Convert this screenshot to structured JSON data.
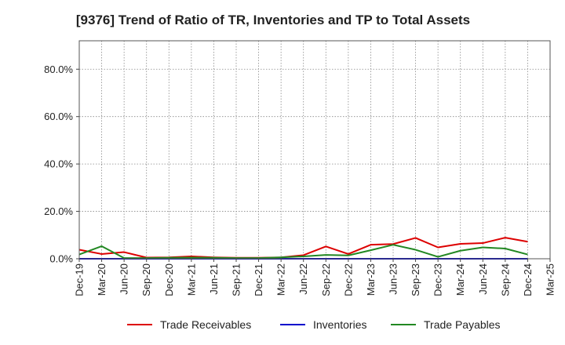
{
  "chart_data": {
    "type": "line",
    "title": "[9376]  Trend of Ratio of TR, Inventories and TP to Total Assets",
    "xlabel": "",
    "ylabel": "",
    "categories": [
      "Dec-19",
      "Mar-20",
      "Jun-20",
      "Sep-20",
      "Dec-20",
      "Mar-21",
      "Jun-21",
      "Sep-21",
      "Dec-21",
      "Mar-22",
      "Jun-22",
      "Sep-22",
      "Dec-22",
      "Mar-23",
      "Jun-23",
      "Sep-23",
      "Dec-23",
      "Mar-24",
      "Jun-24",
      "Sep-24",
      "Dec-24",
      "Mar-25"
    ],
    "y_ticks": [
      "0.0%",
      "20.0%",
      "40.0%",
      "60.0%",
      "80.0%"
    ],
    "ylim": [
      0,
      92
    ],
    "grid": true,
    "legend_position": "bottom",
    "series": [
      {
        "name": "Trade Receivables",
        "color": "#dd0000",
        "values": [
          3.8,
          2.0,
          2.8,
          0.5,
          0.6,
          1.0,
          0.6,
          0.4,
          0.4,
          0.6,
          1.5,
          5.2,
          2.0,
          5.9,
          6.2,
          8.8,
          4.8,
          6.3,
          6.6,
          8.9,
          7.2,
          null
        ]
      },
      {
        "name": "Inventories",
        "color": "#0000cc",
        "values": [
          0.0,
          0.0,
          0.0,
          0.0,
          0.0,
          0.0,
          0.0,
          0.0,
          0.0,
          0.0,
          0.0,
          0.0,
          0.0,
          0.0,
          0.0,
          0.0,
          0.0,
          0.0,
          0.0,
          0.0,
          0.0,
          null
        ]
      },
      {
        "name": "Trade Payables",
        "color": "#228822",
        "values": [
          1.8,
          5.3,
          0.3,
          0.3,
          0.4,
          0.5,
          0.4,
          0.3,
          0.3,
          0.6,
          1.0,
          1.6,
          1.4,
          3.6,
          5.9,
          3.8,
          0.8,
          3.4,
          4.8,
          4.3,
          1.8,
          null
        ]
      }
    ]
  }
}
